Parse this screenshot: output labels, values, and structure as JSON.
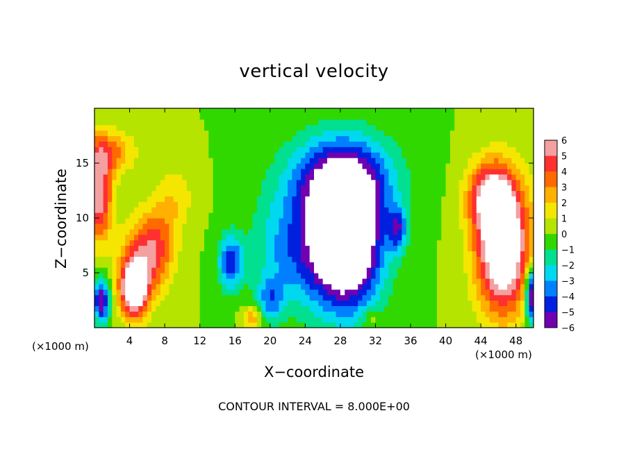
{
  "chart_data": {
    "type": "heatmap",
    "title": "vertical velocity",
    "xlabel": "X−coordinate",
    "ylabel": "Z−coordinate",
    "x_unit_label": "(×1000 m)",
    "y_unit_label": "(×1000 m)",
    "x_ticks": [
      "4",
      "8",
      "12",
      "16",
      "20",
      "24",
      "28",
      "32",
      "36",
      "40",
      "44",
      "48"
    ],
    "x_tick_values": [
      4,
      8,
      12,
      16,
      20,
      24,
      28,
      32,
      36,
      40,
      44,
      48
    ],
    "y_ticks": [
      "5",
      "10",
      "15"
    ],
    "y_tick_values": [
      5,
      10,
      15
    ],
    "xlim": [
      0,
      50
    ],
    "ylim": [
      0,
      20
    ],
    "colorbar": {
      "ticks": [
        "6",
        "5",
        "4",
        "3",
        "2",
        "1",
        "0",
        "−1",
        "−2",
        "−3",
        "−4",
        "−5",
        "−6"
      ],
      "vmin": -6,
      "vmax": 6,
      "bands": [
        {
          "v": 5.5,
          "color": "#f4a0a0"
        },
        {
          "v": 4.5,
          "color": "#ff3030"
        },
        {
          "v": 3.5,
          "color": "#ff6a00"
        },
        {
          "v": 2.5,
          "color": "#ffb000"
        },
        {
          "v": 1.5,
          "color": "#f4e600"
        },
        {
          "v": 0.5,
          "color": "#b4e400"
        },
        {
          "v": -0.5,
          "color": "#30d800"
        },
        {
          "v": -1.5,
          "color": "#00e090"
        },
        {
          "v": -2.5,
          "color": "#00d8f0"
        },
        {
          "v": -3.5,
          "color": "#0080ff"
        },
        {
          "v": -4.5,
          "color": "#0020e0"
        },
        {
          "v": -5.5,
          "color": "#7000b0"
        }
      ]
    },
    "features": [
      {
        "x": 4.5,
        "z": 3.5,
        "sx": 1.6,
        "sz": 2.6,
        "w": 8.0
      },
      {
        "x": 5.5,
        "z": 6.5,
        "sx": 2.5,
        "sz": 3.5,
        "w": 4.0
      },
      {
        "x": 7.5,
        "z": 8.0,
        "sx": 2.0,
        "sz": 4.0,
        "w": 2.5
      },
      {
        "x": 0.5,
        "z": 12.0,
        "sx": 1.5,
        "sz": 4.0,
        "w": 6.0
      },
      {
        "x": 1.5,
        "z": 16.0,
        "sx": 3.0,
        "sz": 2.0,
        "w": 3.5
      },
      {
        "x": 0.8,
        "z": 2.5,
        "sx": 0.9,
        "sz": 2.0,
        "w": -6.0
      },
      {
        "x": 9.5,
        "z": 12.0,
        "sx": 2.0,
        "sz": 3.0,
        "w": 1.5
      },
      {
        "x": 46.5,
        "z": 7.5,
        "sx": 3.0,
        "sz": 6.0,
        "w": 9.0
      },
      {
        "x": 45.0,
        "z": 12.0,
        "sx": 2.5,
        "sz": 3.0,
        "w": 5.0
      },
      {
        "x": 49.8,
        "z": 3.0,
        "sx": 0.7,
        "sz": 2.5,
        "w": -7.0
      },
      {
        "x": 28.5,
        "z": 8.0,
        "sx": 4.0,
        "sz": 6.0,
        "w": -11.0
      },
      {
        "x": 28.0,
        "z": 13.5,
        "sx": 6.0,
        "sz": 4.0,
        "w": -5.0
      },
      {
        "x": 22.0,
        "z": 7.0,
        "sx": 4.0,
        "sz": 5.0,
        "w": -3.0
      },
      {
        "x": 15.5,
        "z": 6.0,
        "sx": 1.4,
        "sz": 2.5,
        "w": -4.5
      },
      {
        "x": 34.5,
        "z": 9.0,
        "sx": 1.0,
        "sz": 2.0,
        "w": -4.0
      },
      {
        "x": 20.0,
        "z": 2.5,
        "sx": 1.5,
        "sz": 2.0,
        "w": -3.0
      },
      {
        "x": 18.0,
        "z": 1.0,
        "sx": 1.2,
        "sz": 1.0,
        "w": 3.0
      },
      {
        "x": 31.5,
        "z": 0.8,
        "sx": 1.0,
        "sz": 1.0,
        "w": 1.5
      }
    ]
  }
}
